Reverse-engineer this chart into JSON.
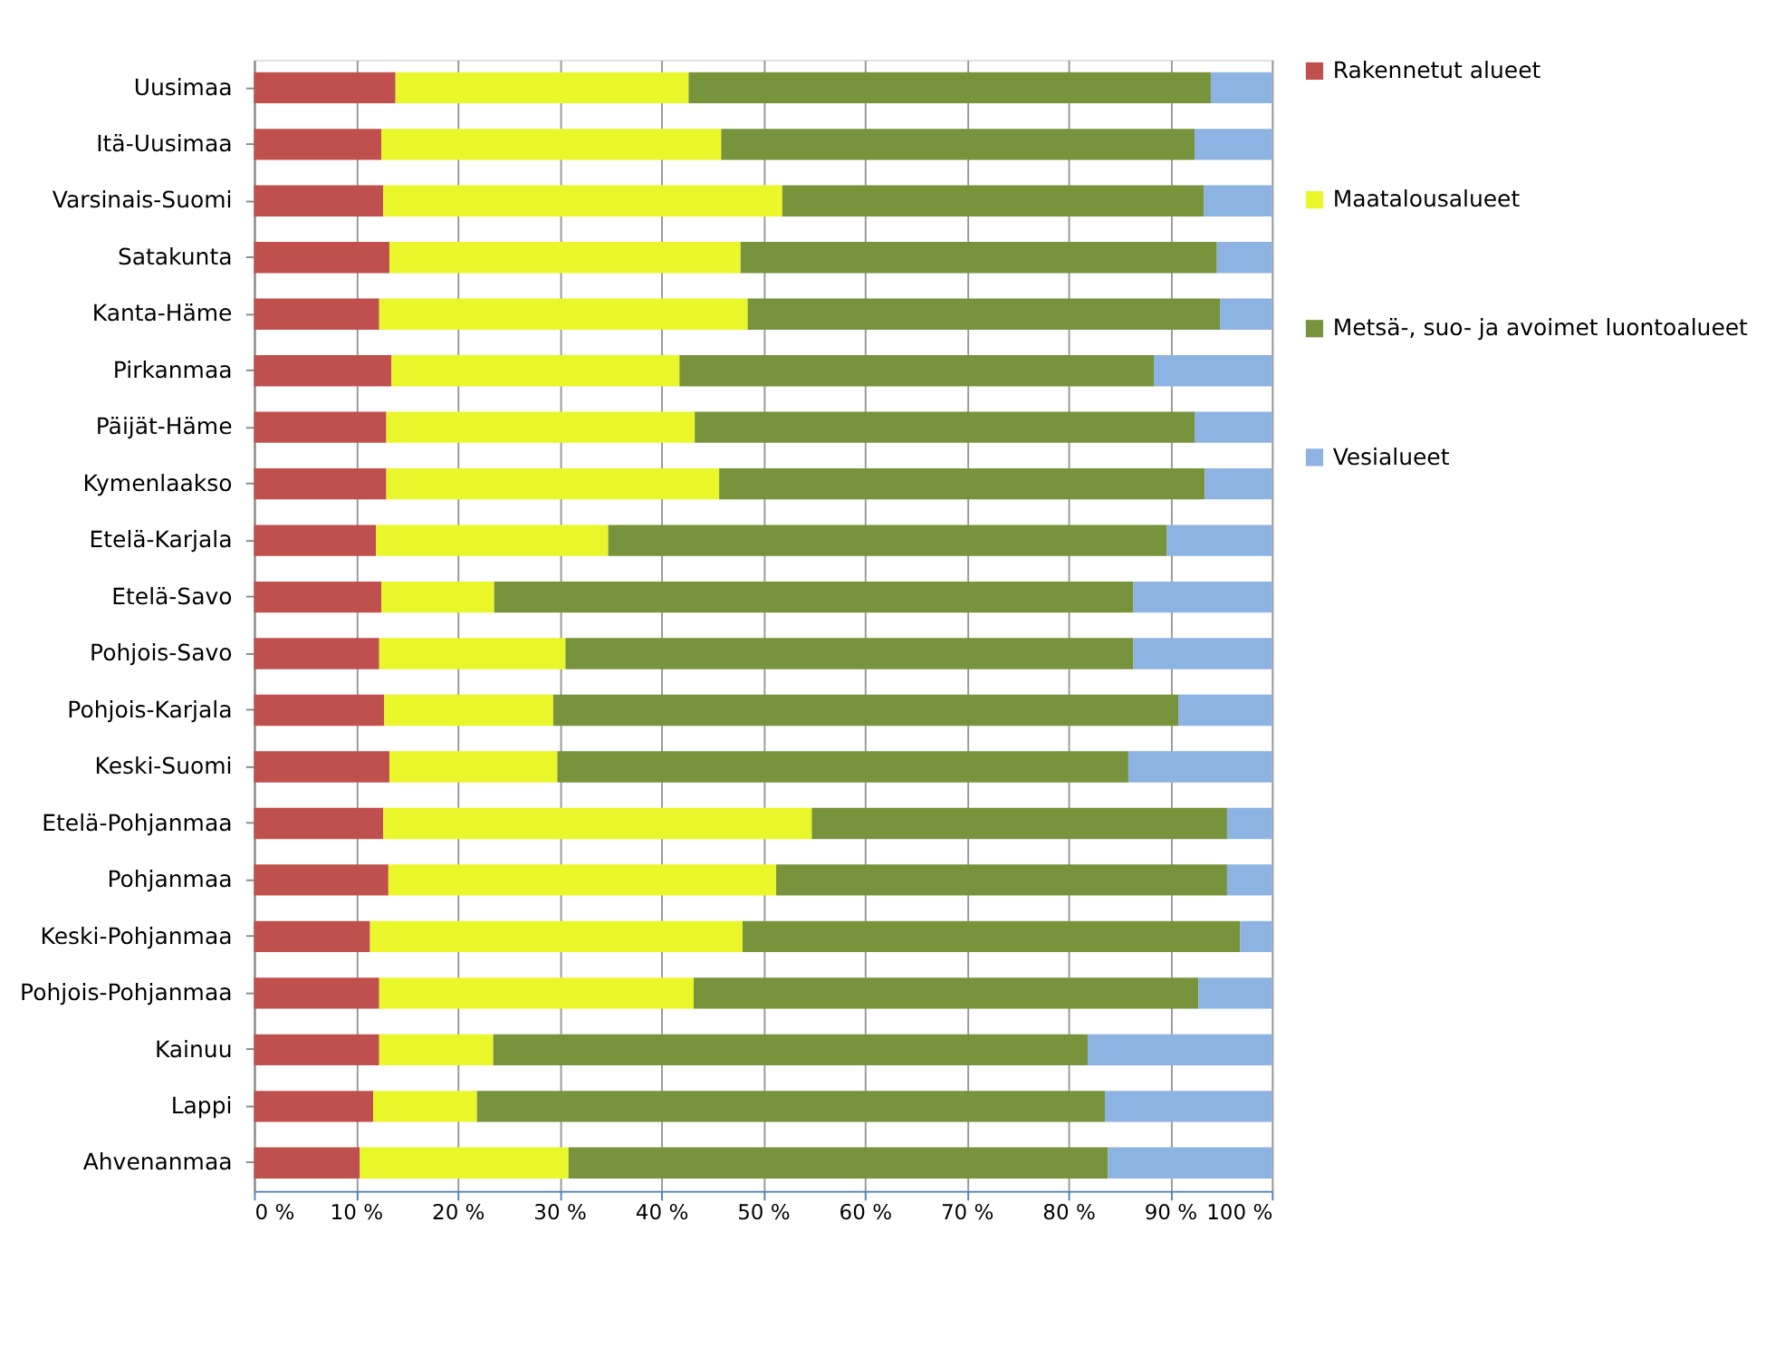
{
  "chart_data": {
    "type": "bar",
    "orientation": "horizontal",
    "stacked": true,
    "categories": [
      "Uusimaa",
      "Itä-Uusimaa",
      "Varsinais-Suomi",
      "Satakunta",
      "Kanta-Häme",
      "Pirkanmaa",
      "Päijät-Häme",
      "Kymenlaakso",
      "Etelä-Karjala",
      "Etelä-Savo",
      "Pohjois-Savo",
      "Pohjois-Karjala",
      "Keski-Suomi",
      "Etelä-Pohjanmaa",
      "Pohjanmaa",
      "Keski-Pohjanmaa",
      "Pohjois-Pohjanmaa",
      "Kainuu",
      "Lappi",
      "Ahvenanmaa"
    ],
    "series": [
      {
        "name": "Rakennetut alueet",
        "color": "#c0504d",
        "values": [
          13.9,
          12.5,
          12.7,
          13.3,
          12.3,
          13.5,
          13.0,
          13.0,
          12.0,
          12.5,
          12.3,
          12.8,
          13.3,
          12.7,
          13.2,
          11.4,
          12.3,
          12.3,
          11.7,
          10.4
        ]
      },
      {
        "name": "Maatalousalueet",
        "color": "#e9f72a",
        "values": [
          28.8,
          33.4,
          39.2,
          34.5,
          36.2,
          28.3,
          30.3,
          32.7,
          22.8,
          11.1,
          18.3,
          16.6,
          16.5,
          42.1,
          38.1,
          36.6,
          30.9,
          11.2,
          10.2,
          20.5
        ]
      },
      {
        "name": "Metsä-, suo- ja avoimet luontoalueet",
        "color": "#77933c",
        "values": [
          51.3,
          46.5,
          41.4,
          46.8,
          46.4,
          46.6,
          49.1,
          47.7,
          54.9,
          62.8,
          55.8,
          61.4,
          56.1,
          40.8,
          44.3,
          48.9,
          49.6,
          58.4,
          61.7,
          53.0
        ]
      },
      {
        "name": "Vesialueet",
        "color": "#8db3e2",
        "values": [
          6.0,
          7.6,
          6.7,
          5.4,
          5.1,
          11.6,
          7.6,
          6.6,
          10.3,
          13.6,
          13.6,
          9.2,
          14.1,
          4.4,
          4.4,
          3.1,
          7.2,
          18.1,
          16.4,
          16.1
        ]
      }
    ],
    "xlim": [
      0,
      100
    ],
    "xticks": [
      {
        "value": 0,
        "label": "0 %"
      },
      {
        "value": 10,
        "label": "10 %"
      },
      {
        "value": 20,
        "label": "20 %"
      },
      {
        "value": 30,
        "label": "30 %"
      },
      {
        "value": 40,
        "label": "40 %"
      },
      {
        "value": 50,
        "label": "50 %"
      },
      {
        "value": 60,
        "label": "60 %"
      },
      {
        "value": 70,
        "label": "70 %"
      },
      {
        "value": 80,
        "label": "80 %"
      },
      {
        "value": 90,
        "label": "90 %"
      },
      {
        "value": 100,
        "label": "100 %"
      }
    ],
    "grid": "x",
    "legend": "right"
  }
}
